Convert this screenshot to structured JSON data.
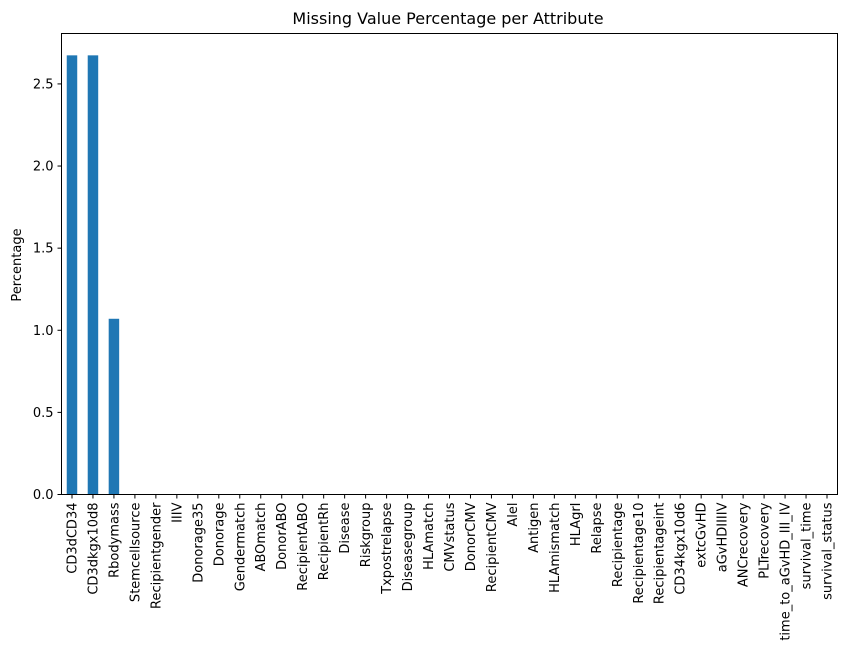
{
  "chart_data": {
    "type": "bar",
    "title": "Missing Value Percentage per Attribute",
    "xlabel": "",
    "ylabel": "Percentage",
    "ylim": [
      0,
      2.807
    ],
    "yticks": [
      "0.0",
      "0.5",
      "1.0",
      "1.5",
      "2.0",
      "2.5"
    ],
    "grid": false,
    "legend": "none",
    "bar_color": "#1f77b4",
    "categories": [
      "CD3dCD34",
      "CD3dkgx10d8",
      "Rbodymass",
      "Stemcellsource",
      "Recipientgender",
      "IIIV",
      "Donorage35",
      "Donorage",
      "Gendermatch",
      "ABOmatch",
      "DonorABO",
      "RecipientABO",
      "RecipientRh",
      "Disease",
      "Riskgroup",
      "Txpostrelapse",
      "Diseasegroup",
      "HLAmatch",
      "CMVstatus",
      "DonorCMV",
      "RecipientCMV",
      "Alel",
      "Antigen",
      "HLAmismatch",
      "HLAgrI",
      "Relapse",
      "Recipientage",
      "Recipientage10",
      "Recipientageint",
      "CD34kgx10d6",
      "extcGvHD",
      "aGvHDIIIIV",
      "ANCrecovery",
      "PLTrecovery",
      "time_to_aGvHD_III_IV",
      "survival_time",
      "survival_status"
    ],
    "values": [
      2.674,
      2.674,
      1.07,
      0,
      0,
      0,
      0,
      0,
      0,
      0,
      0,
      0,
      0,
      0,
      0,
      0,
      0,
      0,
      0,
      0,
      0,
      0,
      0,
      0,
      0,
      0,
      0,
      0,
      0,
      0,
      0,
      0,
      0,
      0,
      0,
      0,
      0
    ]
  }
}
